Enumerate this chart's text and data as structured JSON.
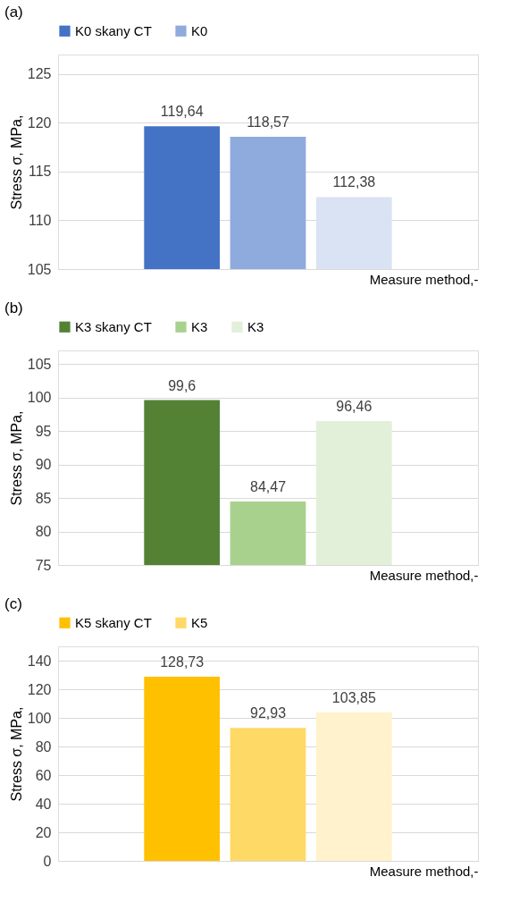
{
  "chart_data": [
    {
      "type": "bar",
      "title": "(a)",
      "xlabel": "Measure method,-",
      "ylabel": "Stress σ, MPa,",
      "categories": [
        null
      ],
      "ylim": [
        105,
        127
      ],
      "yticks": [
        105,
        110,
        115,
        120,
        125
      ],
      "grid": "y",
      "legend": "top",
      "series": [
        {
          "name": "K0 skany CT",
          "color": "#4472c4",
          "values": [
            119.64
          ],
          "value_labels": [
            "119,64"
          ]
        },
        {
          "name": "K0",
          "color": "#8faadc",
          "values": [
            118.57
          ],
          "value_labels": [
            "118,57"
          ]
        },
        {
          "color": "#dae3f3",
          "values": [
            112.38
          ],
          "value_labels": [
            "112,38"
          ]
        }
      ]
    },
    {
      "type": "bar",
      "title": "(b)",
      "xlabel": "Measure method,-",
      "ylabel": "Stress σ, MPa,",
      "categories": [
        null
      ],
      "ylim": [
        75,
        107
      ],
      "yticks": [
        75,
        80,
        85,
        90,
        95,
        100,
        105
      ],
      "grid": "y",
      "legend": "top",
      "series": [
        {
          "name": "K3 skany CT",
          "color": "#548235",
          "values": [
            99.6
          ],
          "value_labels": [
            "99,6"
          ]
        },
        {
          "name": "K3",
          "color": "#a9d18e",
          "values": [
            84.47
          ],
          "value_labels": [
            "84,47"
          ]
        },
        {
          "name": "K3 ",
          "color": "#e2f0d9",
          "values": [
            96.46
          ],
          "value_labels": [
            "96,46"
          ]
        }
      ]
    },
    {
      "type": "bar",
      "title": "(c)",
      "xlabel": "Measure method,-",
      "ylabel": "Stress σ, MPa,",
      "categories": [
        null
      ],
      "ylim": [
        0,
        150
      ],
      "yticks": [
        0,
        20,
        40,
        60,
        80,
        100,
        120,
        140
      ],
      "grid": "y",
      "legend": "top",
      "series": [
        {
          "name": "K5 skany CT",
          "color": "#ffc000",
          "values": [
            128.73
          ],
          "value_labels": [
            "128,73"
          ]
        },
        {
          "name": "K5",
          "color": "#ffd966",
          "values": [
            92.93
          ],
          "value_labels": [
            "92,93"
          ]
        },
        {
          "color": "#fff2cc",
          "values": [
            103.85
          ],
          "value_labels": [
            "103,85"
          ]
        }
      ]
    }
  ]
}
